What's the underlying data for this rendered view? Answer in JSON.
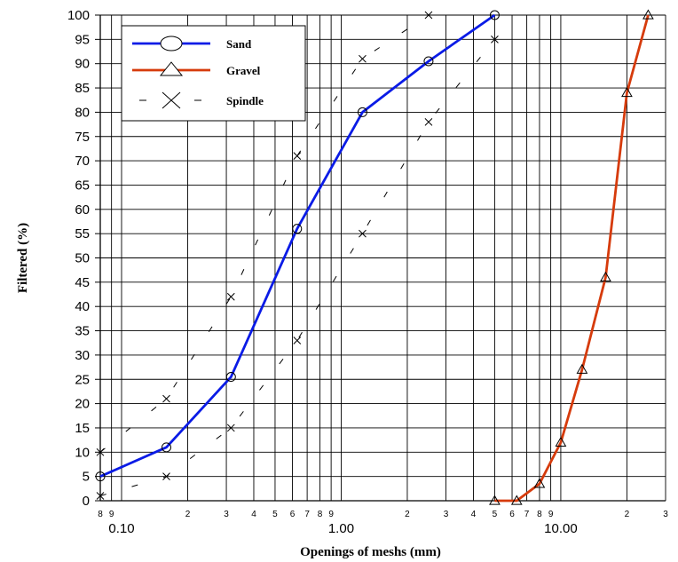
{
  "chart_data": {
    "type": "line",
    "xlabel": "Openings of meshs (mm)",
    "ylabel": "Filtered (%)",
    "x_scale": "log",
    "xlim": [
      0.08,
      30
    ],
    "ylim": [
      0,
      100
    ],
    "y_ticks": [
      "0",
      "5",
      "10",
      "15",
      "20",
      "25",
      "30",
      "35",
      "40",
      "45",
      "50",
      "55",
      "60",
      "65",
      "70",
      "75",
      "80",
      "85",
      "90",
      "95",
      "100"
    ],
    "x_major_labels": [
      {
        "x": 0.1,
        "label": "0.10"
      },
      {
        "x": 1,
        "label": "1.00"
      },
      {
        "x": 10,
        "label": "10.00"
      }
    ],
    "x_minor_labels": [
      {
        "x": 0.08,
        "label": "8"
      },
      {
        "x": 0.09,
        "label": "9"
      },
      {
        "x": 0.2,
        "label": "2"
      },
      {
        "x": 0.3,
        "label": "3"
      },
      {
        "x": 0.4,
        "label": "4"
      },
      {
        "x": 0.5,
        "label": "5"
      },
      {
        "x": 0.6,
        "label": "6"
      },
      {
        "x": 0.7,
        "label": "7"
      },
      {
        "x": 0.8,
        "label": "8"
      },
      {
        "x": 0.9,
        "label": "9"
      },
      {
        "x": 2,
        "label": "2"
      },
      {
        "x": 3,
        "label": "3"
      },
      {
        "x": 4,
        "label": "4"
      },
      {
        "x": 5,
        "label": "5"
      },
      {
        "x": 6,
        "label": "6"
      },
      {
        "x": 7,
        "label": "7"
      },
      {
        "x": 8,
        "label": "8"
      },
      {
        "x": 9,
        "label": "9"
      },
      {
        "x": 20,
        "label": "2"
      },
      {
        "x": 30,
        "label": "3"
      }
    ],
    "grid": true,
    "legend_position": "top-left",
    "series": [
      {
        "name": "Sand",
        "color": "#0a1be6",
        "marker": "circle",
        "line": "solid",
        "x": [
          0.08,
          0.16,
          0.315,
          0.63,
          1.25,
          2.5,
          5
        ],
        "y": [
          5,
          11,
          25.5,
          56,
          80,
          90.5,
          100
        ]
      },
      {
        "name": "Gravel",
        "color": "#d63b0c",
        "marker": "triangle",
        "line": "solid",
        "x": [
          5,
          6.3,
          8,
          10,
          12.5,
          16,
          20,
          25
        ],
        "y": [
          0,
          0,
          3.5,
          12,
          27,
          46,
          84,
          100
        ]
      },
      {
        "name": "Spindle",
        "color": "#000000",
        "marker": "x",
        "line": "dashed",
        "lower": {
          "x": [
            0.08,
            0.16,
            0.315,
            0.63,
            1.25,
            2.5,
            5
          ],
          "y": [
            1,
            5,
            15,
            33,
            55,
            78,
            95
          ]
        },
        "upper": {
          "x": [
            0.08,
            0.16,
            0.315,
            0.63,
            1.25,
            2.5
          ],
          "y": [
            10,
            21,
            42,
            71,
            91,
            100
          ]
        }
      }
    ]
  }
}
